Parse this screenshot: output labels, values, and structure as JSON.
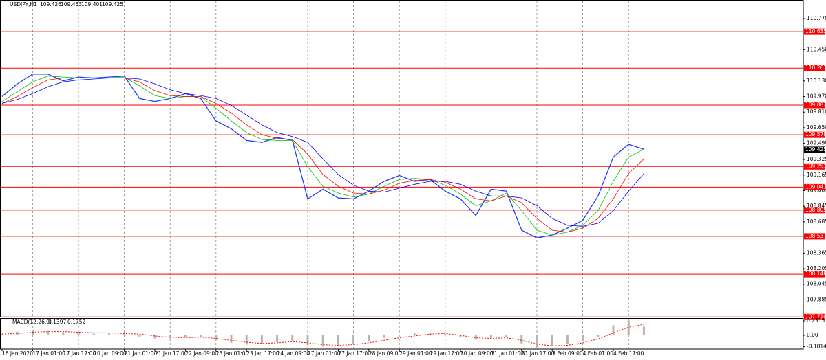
{
  "chart_data": [
    {
      "type": "line",
      "title": "USDJPY,H1",
      "header_values": [
        109.426,
        109.453,
        109.401,
        109.425
      ],
      "categories": [
        "16 Jan 2020",
        null,
        "17 Jan 01:00",
        null,
        "17 Jan 17:00",
        null,
        "20 Jan 09:00",
        null,
        "21 Jan 01:00",
        null,
        "21 Jan 17:00",
        null,
        "22 Jan 09:00",
        null,
        "23 Jan 01:00",
        null,
        "23 Jan 17:00",
        null,
        "24 Jan 09:00",
        null,
        "27 Jan 01:00",
        null,
        "27 Jan 17:00",
        null,
        "28 Jan 09:00",
        null,
        "29 Jan 01:00",
        null,
        "29 Jan 17:00",
        null,
        "30 Jan 09:00",
        null,
        "31 Jan 01:00",
        null,
        "31 Jan 17:00",
        null,
        "3 Feb 09:00",
        null,
        "4 Feb 01:00",
        null,
        "4 Feb 17:00",
        null,
        null
      ],
      "series": [
        {
          "color": "#1e3cff",
          "width": 1.3,
          "values": [
            109.97,
            110.1,
            110.2,
            110.2,
            110.13,
            110.17,
            110.16,
            110.17,
            110.18,
            109.95,
            109.92,
            109.95,
            110.0,
            109.95,
            109.72,
            109.64,
            109.52,
            109.5,
            109.55,
            109.52,
            108.92,
            109.02,
            108.93,
            108.92,
            109.0,
            109.1,
            109.16,
            109.1,
            109.12,
            109.0,
            108.92,
            108.75,
            109.02,
            109.0,
            108.6,
            108.52,
            108.55,
            108.62,
            108.7,
            108.95,
            109.35,
            109.48,
            109.43
          ]
        },
        {
          "color": "#00c000",
          "width": 0.8,
          "values": [
            109.92,
            110.02,
            110.12,
            110.18,
            110.17,
            110.16,
            110.16,
            110.16,
            110.17,
            110.08,
            109.98,
            109.95,
            109.97,
            109.97,
            109.85,
            109.72,
            109.6,
            109.53,
            109.52,
            109.52,
            109.25,
            109.05,
            108.98,
            108.94,
            108.97,
            109.05,
            109.12,
            109.13,
            109.12,
            109.06,
            108.97,
            108.85,
            108.9,
            108.98,
            108.8,
            108.6,
            108.55,
            108.58,
            108.65,
            108.8,
            109.1,
            109.35,
            109.43
          ]
        },
        {
          "color": "#ff0000",
          "width": 0.8,
          "values": [
            109.9,
            109.97,
            110.06,
            110.14,
            110.16,
            110.16,
            110.16,
            110.16,
            110.16,
            110.12,
            110.03,
            109.98,
            109.97,
            109.97,
            109.9,
            109.8,
            109.68,
            109.58,
            109.54,
            109.53,
            109.38,
            109.17,
            109.05,
            108.98,
            108.97,
            109.01,
            109.08,
            109.11,
            109.12,
            109.09,
            109.02,
            108.92,
            108.9,
            108.95,
            108.88,
            108.72,
            108.6,
            108.58,
            108.62,
            108.72,
            108.92,
            109.18,
            109.33
          ]
        },
        {
          "color": "#0000ff",
          "width": 0.8,
          "values": [
            109.9,
            109.94,
            110.0,
            110.07,
            110.12,
            110.14,
            110.15,
            110.16,
            110.16,
            110.15,
            110.1,
            110.04,
            110.0,
            109.98,
            109.95,
            109.88,
            109.78,
            109.68,
            109.6,
            109.56,
            109.5,
            109.33,
            109.17,
            109.06,
            109.0,
            108.99,
            109.03,
            109.07,
            109.1,
            109.1,
            109.07,
            109.0,
            108.95,
            108.95,
            108.93,
            108.85,
            108.72,
            108.65,
            108.64,
            108.67,
            108.8,
            109.0,
            109.18
          ]
        }
      ],
      "levels": [
        110.635,
        110.261,
        109.882,
        109.578,
        109.253,
        109.041,
        108.805,
        108.537,
        108.148,
        {
          "value": 107.71,
          "label": "107.710"
        }
      ],
      "level_color": "#ff0000",
      "current_price": 109.425,
      "ylim": [
        107.705,
        110.96
      ],
      "yticks": [
        {
          "value": 110.77,
          "label": "110.770"
        },
        {
          "value": 110.45,
          "label": "110.450"
        },
        {
          "value": 110.13,
          "label": "110.130"
        },
        {
          "value": 109.97,
          "label": "109.970"
        },
        {
          "value": 109.81,
          "label": "109.810"
        },
        {
          "value": 109.65,
          "label": "109.650"
        },
        {
          "value": 109.49,
          "label": "109.490"
        },
        109.325,
        109.165,
        109.005,
        108.845,
        108.685,
        108.365,
        108.205,
        108.045,
        107.885
      ],
      "grid": true
    },
    {
      "type": "macd",
      "title": "MACD(12,26,9)",
      "header_values": [
        0.1397,
        0.1752
      ],
      "series": [
        {
          "color": "#b4b4b4",
          "style": "histogram",
          "values": [
            0.03,
            0.06,
            0.08,
            0.07,
            0.05,
            0.04,
            0.03,
            0.03,
            0.03,
            -0.02,
            -0.05,
            -0.05,
            -0.03,
            -0.03,
            -0.08,
            -0.12,
            -0.15,
            -0.14,
            -0.11,
            -0.09,
            -0.16,
            -0.18,
            -0.16,
            -0.13,
            -0.09,
            -0.04,
            0.01,
            0.03,
            0.04,
            0.02,
            -0.03,
            -0.07,
            -0.05,
            -0.03,
            -0.13,
            -0.19,
            -0.18,
            -0.14,
            -0.09,
            -0.02,
            0.16,
            0.24,
            0.14
          ]
        },
        {
          "color": "#ff0000",
          "style": "dotted",
          "values": [
            0.02,
            0.03,
            0.05,
            0.06,
            0.06,
            0.05,
            0.04,
            0.04,
            0.03,
            0.02,
            -0.01,
            -0.03,
            -0.04,
            -0.03,
            -0.05,
            -0.08,
            -0.11,
            -0.13,
            -0.12,
            -0.1,
            -0.12,
            -0.15,
            -0.16,
            -0.15,
            -0.12,
            -0.08,
            -0.04,
            -0.01,
            0.02,
            0.03,
            0.0,
            -0.04,
            -0.05,
            -0.04,
            -0.08,
            -0.14,
            -0.17,
            -0.16,
            -0.12,
            -0.06,
            0.04,
            0.13,
            0.175
          ]
        }
      ],
      "ylim": [
        -0.2205,
        0.2756
      ],
      "yticks": [
        0.2315,
        {
          "value": 0,
          "label": "0.00"
        },
        -0.1814
      ]
    }
  ]
}
